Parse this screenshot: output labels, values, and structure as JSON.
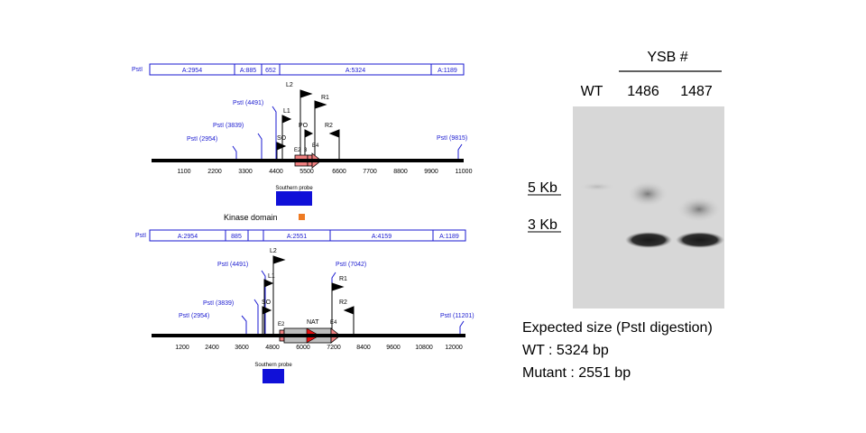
{
  "colors": {
    "map_line": "#000000",
    "frag_text": "#1a1ad0",
    "blue_label": "#1a1ad0",
    "probe": "#1010d8",
    "kinase": "#ee7a22",
    "gene_salmon": "#f08080",
    "arrow_red": "#e81010",
    "nat_box": "#bdbdbd",
    "blot_bg": "#d7d7d7"
  },
  "wt_map": {
    "fragment_bar": {
      "left_label": "PstI",
      "fragments": [
        "A:2954",
        "A:885",
        "652",
        "A:5324",
        "A:1189"
      ]
    },
    "primers": [
      "L2",
      "L1",
      "PO",
      "R1",
      "R2",
      "SO"
    ],
    "sites": [
      "PstI (4491)",
      "PstI (3839)",
      "PstI (2954)",
      "PstI (9815)"
    ],
    "exons": [
      "E2",
      "3",
      "E4"
    ],
    "ticks": [
      "1100",
      "2200",
      "3300",
      "4400",
      "5500",
      "6600",
      "7700",
      "8800",
      "9900",
      "11000"
    ],
    "probe_label": "Southern probe"
  },
  "legend": {
    "kinase_label": "Kinase domain"
  },
  "mut_map": {
    "fragment_bar": {
      "left_label": "PstI",
      "fragments": [
        "A:2954",
        "885",
        "A:2551",
        "A:4159",
        "A:1189"
      ]
    },
    "primers": [
      "L2",
      "L1",
      "SO",
      "R1",
      "R2"
    ],
    "sites": [
      "PstI (4491)",
      "PstI (7042)",
      "PstI (3839)",
      "PstI (2954)",
      "PstI (11201)"
    ],
    "exons": [
      "E2",
      "NAT",
      "E4"
    ],
    "ticks": [
      "1200",
      "2400",
      "3600",
      "4800",
      "6000",
      "7200",
      "8400",
      "9600",
      "10800",
      "12000"
    ],
    "probe_label": "Southern probe"
  },
  "blot": {
    "group_label": "YSB #",
    "lanes": [
      "WT",
      "1486",
      "1487"
    ],
    "markers": [
      "5 Kb",
      "3 Kb"
    ]
  },
  "caption": {
    "line1": "Expected size (PstI digestion)",
    "line2": "WT : 5324 bp",
    "line3": "Mutant : 2551 bp"
  }
}
